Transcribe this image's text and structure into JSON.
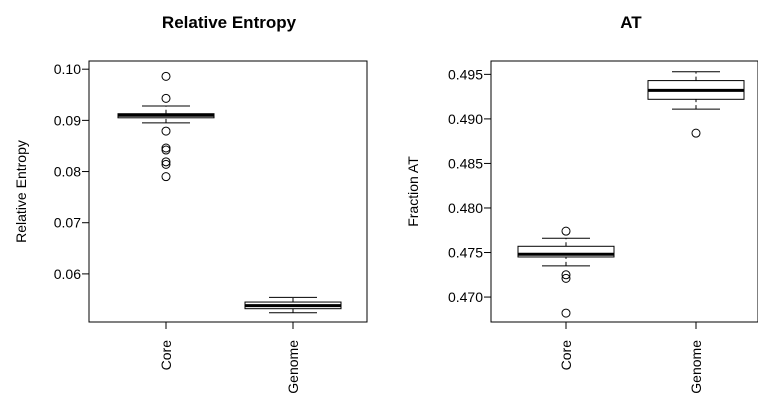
{
  "chart_data": [
    {
      "type": "box",
      "title": "Relative Entropy",
      "xlabel": "",
      "ylabel": "Relative Entropy",
      "categories": [
        "Core",
        "Genome"
      ],
      "yticks": [
        "0.06",
        "0.07",
        "0.08",
        "0.09",
        "0.10"
      ],
      "ytick_values": [
        0.06,
        0.07,
        0.08,
        0.09,
        0.1
      ],
      "ylim": [
        0.0506,
        0.1016
      ],
      "boxes": [
        {
          "name": "Core",
          "whisker_low": 0.0895,
          "q1": 0.0905,
          "median": 0.091,
          "q3": 0.0913,
          "whisker_high": 0.0928,
          "outliers": [
            0.0986,
            0.0943,
            0.0879,
            0.0846,
            0.0842,
            0.0819,
            0.0814,
            0.079
          ]
        },
        {
          "name": "Genome",
          "whisker_low": 0.0524,
          "q1": 0.0532,
          "median": 0.0538,
          "q3": 0.0545,
          "whisker_high": 0.0554,
          "outliers": []
        }
      ]
    },
    {
      "type": "box",
      "title": "AT",
      "xlabel": "",
      "ylabel": "Fraction AT",
      "categories": [
        "Core",
        "Genome"
      ],
      "yticks": [
        "0.470",
        "0.475",
        "0.480",
        "0.485",
        "0.490",
        "0.495"
      ],
      "ytick_values": [
        0.47,
        0.475,
        0.48,
        0.485,
        0.49,
        0.495
      ],
      "ylim": [
        0.4672,
        0.4965
      ],
      "boxes": [
        {
          "name": "Core",
          "whisker_low": 0.4735,
          "q1": 0.4745,
          "median": 0.4748,
          "q3": 0.4757,
          "whisker_high": 0.4766,
          "outliers": [
            0.4774,
            0.4725,
            0.4721,
            0.4682
          ]
        },
        {
          "name": "Genome",
          "whisker_low": 0.4911,
          "q1": 0.4922,
          "median": 0.4932,
          "q3": 0.4943,
          "whisker_high": 0.4953,
          "outliers": [
            0.4884
          ]
        }
      ]
    }
  ]
}
